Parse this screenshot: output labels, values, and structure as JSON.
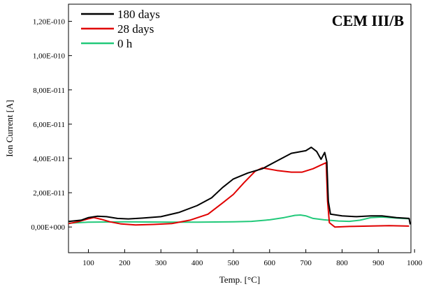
{
  "chart_data": {
    "type": "line",
    "annotation": "CEM III/B",
    "xlabel": "Temp. [°C]",
    "ylabel": "Ion Current [A]",
    "xlim": [
      45,
      990
    ],
    "ylim": [
      -1.5e-11,
      1.3e-10
    ],
    "x_ticks": [
      100,
      200,
      300,
      400,
      500,
      600,
      700,
      800,
      900,
      1000
    ],
    "y_ticks": [
      0,
      2e-11,
      4e-11,
      6e-11,
      8e-11,
      1e-10,
      1.2e-10
    ],
    "y_tick_labels": [
      "0,00E+000",
      "2,00E-011",
      "4,00E-011",
      "6,00E-011",
      "8,00E-011",
      "1,00E-010",
      "1,20E-010"
    ],
    "legend_position": "top-left",
    "series": [
      {
        "name": "180 days",
        "color": "#000000",
        "points": [
          [
            45,
            3.2e-12
          ],
          [
            80,
            4e-12
          ],
          [
            100,
            5.5e-12
          ],
          [
            125,
            6.3e-12
          ],
          [
            150,
            6e-12
          ],
          [
            180,
            5e-12
          ],
          [
            210,
            4.7e-12
          ],
          [
            250,
            5.2e-12
          ],
          [
            300,
            6e-12
          ],
          [
            350,
            8.5e-12
          ],
          [
            400,
            1.25e-11
          ],
          [
            440,
            1.7e-11
          ],
          [
            470,
            2.3e-11
          ],
          [
            500,
            2.8e-11
          ],
          [
            540,
            3.15e-11
          ],
          [
            580,
            3.4e-11
          ],
          [
            620,
            3.85e-11
          ],
          [
            660,
            4.3e-11
          ],
          [
            700,
            4.45e-11
          ],
          [
            715,
            4.65e-11
          ],
          [
            730,
            4.4e-11
          ],
          [
            742,
            3.95e-11
          ],
          [
            752,
            4.35e-11
          ],
          [
            758,
            3.8e-11
          ],
          [
            762,
            1.5e-11
          ],
          [
            768,
            7.5e-12
          ],
          [
            800,
            6.5e-12
          ],
          [
            840,
            6e-12
          ],
          [
            880,
            6.5e-12
          ],
          [
            910,
            6.5e-12
          ],
          [
            950,
            5.5e-12
          ],
          [
            985,
            5e-12
          ],
          [
            988,
            1.5e-12
          ]
        ]
      },
      {
        "name": "28 days",
        "color": "#e00000",
        "points": [
          [
            45,
            2e-12
          ],
          [
            70,
            3e-12
          ],
          [
            100,
            4.8e-12
          ],
          [
            115,
            5.5e-12
          ],
          [
            135,
            4.5e-12
          ],
          [
            160,
            3e-12
          ],
          [
            190,
            1.8e-12
          ],
          [
            230,
            1.2e-12
          ],
          [
            280,
            1.5e-12
          ],
          [
            330,
            2e-12
          ],
          [
            380,
            4e-12
          ],
          [
            430,
            7.5e-12
          ],
          [
            470,
            1.4e-11
          ],
          [
            500,
            1.9e-11
          ],
          [
            530,
            2.6e-11
          ],
          [
            560,
            3.25e-11
          ],
          [
            580,
            3.45e-11
          ],
          [
            620,
            3.3e-11
          ],
          [
            660,
            3.2e-11
          ],
          [
            690,
            3.2e-11
          ],
          [
            720,
            3.4e-11
          ],
          [
            740,
            3.6e-11
          ],
          [
            756,
            3.75e-11
          ],
          [
            760,
            1.5e-11
          ],
          [
            765,
            2.5e-12
          ],
          [
            780,
            0.0
          ],
          [
            820,
            3e-13
          ],
          [
            870,
            5e-13
          ],
          [
            930,
            8e-13
          ],
          [
            985,
            5e-13
          ]
        ]
      },
      {
        "name": "0 h",
        "color": "#22c97a",
        "points": [
          [
            45,
            2.2e-12
          ],
          [
            100,
            2.8e-12
          ],
          [
            200,
            3e-12
          ],
          [
            300,
            2.9e-12
          ],
          [
            400,
            2.8e-12
          ],
          [
            500,
            3e-12
          ],
          [
            550,
            3.3e-12
          ],
          [
            600,
            4.2e-12
          ],
          [
            640,
            5.5e-12
          ],
          [
            670,
            6.8e-12
          ],
          [
            685,
            7e-12
          ],
          [
            700,
            6.5e-12
          ],
          [
            720,
            5e-12
          ],
          [
            750,
            4.2e-12
          ],
          [
            790,
            3.5e-12
          ],
          [
            820,
            3.3e-12
          ],
          [
            850,
            4e-12
          ],
          [
            880,
            5.5e-12
          ],
          [
            910,
            5.8e-12
          ],
          [
            950,
            5.2e-12
          ],
          [
            985,
            4.8e-12
          ]
        ]
      }
    ]
  }
}
